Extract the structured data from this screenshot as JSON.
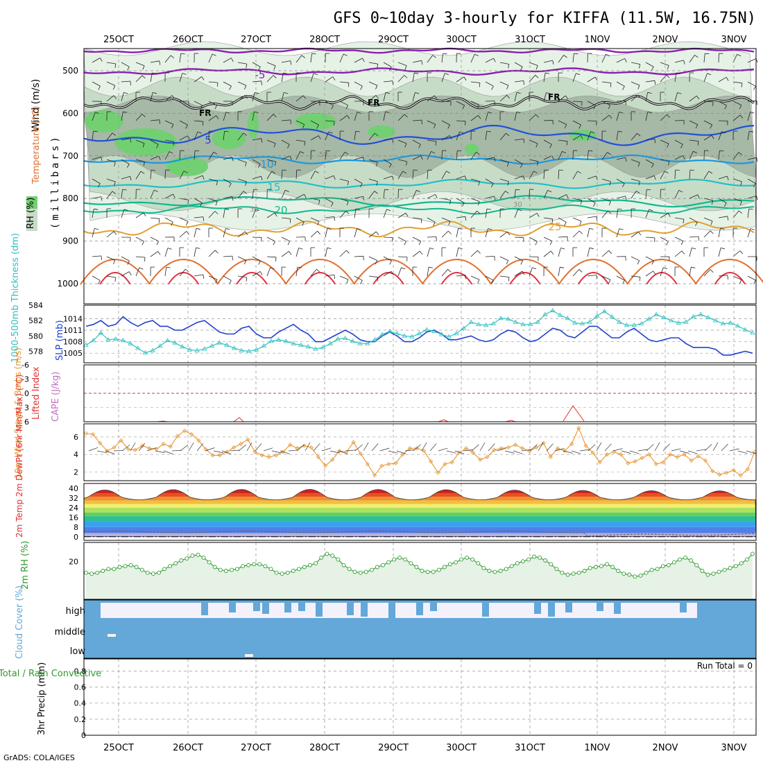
{
  "title": "GFS 0~10day 3-hourly for KIFFA (11.5W, 16.75N)",
  "footer": "GrADS: COLA/IGES",
  "dates": [
    "25OCT",
    "26OCT",
    "27OCT",
    "28OCT",
    "29OCT",
    "30OCT",
    "31OCT",
    "1NOV",
    "2NOV",
    "3NOV"
  ],
  "colors": {
    "rh_light": "#e6f2e6",
    "rh_mid": "#c7dcc7",
    "rh_dark": "#a6b8a6",
    "rh_green": "#72d072",
    "slp": "#1f3fcf",
    "thickness": "#30c0c0",
    "wind_speed": "#e89530",
    "rh2m": "#2f9a2f",
    "cloud": "#63a8d8",
    "cloud_bg": "#f5f1fa",
    "cape": "#c070c0",
    "lifted": "#e03030",
    "fr_line": "#000000",
    "iso_minus5": "#8a1fb0",
    "iso_5": "#2050d8",
    "iso_10": "#1898e0",
    "iso_15": "#20c0c8",
    "iso_20": "#10b890",
    "iso_25": "#e0a030",
    "iso_30": "#e07030",
    "iso_35": "#e03040"
  },
  "panels": {
    "upper": {
      "ylabel_wind": "Wind (m/s)",
      "ylabel_temp": "Temperature (°C)",
      "ylabel_rh": "RH (%)",
      "ylabel_units": "(millibars)",
      "pressure_ticks": [
        "500",
        "600",
        "700",
        "800",
        "900",
        "1000"
      ],
      "isotherm_labels": [
        "-5",
        "5",
        "10",
        "15",
        "20",
        "25"
      ],
      "fr_label": "FR",
      "rh_contour_labels": [
        "30",
        "50"
      ]
    },
    "slp": {
      "ylabel_left": "1000-500mb Thickness (dm)",
      "ylabel_right": "SLP (mb)",
      "thickness_ticks": [
        "584",
        "582",
        "580",
        "578"
      ],
      "slp_ticks": [
        "1014",
        "1011",
        "1008",
        "1005"
      ]
    },
    "li": {
      "ylabel_left": "Lifted Index",
      "ylabel_right": "CAPE (J/kg)",
      "ticks": [
        "-6",
        "-3",
        "0",
        "3",
        "6"
      ]
    },
    "wind10": {
      "ylabel": "10m Wind Speed & Barbs (m/s)",
      "ticks": [
        "6",
        "4",
        "2"
      ]
    },
    "temp2m": {
      "ylabel": "2m Temp 2m DewPt (6hr Min/Max) (°C)",
      "ticks": [
        "40",
        "32",
        "24",
        "16",
        "8",
        "0"
      ]
    },
    "rh2m": {
      "ylabel": "2m RH (%)",
      "ticks": [
        "20"
      ]
    },
    "cloud": {
      "ylabel": "Cloud Cover (%)",
      "levels": [
        "high",
        "middle",
        "low"
      ]
    },
    "precip": {
      "ylabel": "3hr Precip (mm)",
      "legend": "Total / Rain Convective",
      "run_total": "Run Total = 0",
      "ticks": [
        "0.8",
        "0.6",
        "0.4",
        "0.2",
        "0"
      ]
    }
  },
  "chart_data": [
    {
      "type": "line",
      "title": "SLP (mb) and 1000-500mb Thickness (dm)",
      "series": [
        {
          "name": "SLP (mb)",
          "values": [
            1012,
            1012.5,
            1013.5,
            1012,
            1012.5,
            1014.5,
            1013,
            1012,
            1013,
            1013.5,
            1012,
            1012,
            1011,
            1011,
            1012,
            1013,
            1013.5,
            1012,
            1010.5,
            1010,
            1010,
            1011.5,
            1012,
            1010,
            1009,
            1009,
            1010.5,
            1011.5,
            1012.5,
            1011,
            1010,
            1008,
            1008,
            1009,
            1010,
            1011,
            1010,
            1008.5,
            1008,
            1008,
            1009.5,
            1010.5,
            1009.5,
            1008,
            1008,
            1009,
            1010.5,
            1011,
            1010,
            1008.5,
            1008.5,
            1009,
            1009.5,
            1008.5,
            1008,
            1008.5,
            1010,
            1011,
            1010.5,
            1009,
            1008,
            1008.5,
            1010,
            1011.5,
            1011,
            1009.5,
            1009,
            1010.5,
            1012,
            1012,
            1010.5,
            1009,
            1009,
            1010.5,
            1011.5,
            1010,
            1008.5,
            1008,
            1008.5,
            1009,
            1009,
            1007.5,
            1006.5,
            1006.5,
            1006.5,
            1006,
            1004.5,
            1004.5,
            1005,
            1005.5,
            1005
          ]
        },
        {
          "name": "1000-500mb Thickness (dm)",
          "values": [
            578.8,
            579.4,
            580.4,
            579.5,
            579.6,
            579.4,
            579.0,
            578.4,
            577.8,
            578.1,
            578.7,
            579.4,
            579.1,
            578.6,
            578.2,
            578.1,
            578.3,
            578.7,
            579.1,
            578.8,
            578.4,
            578.1,
            578.0,
            578.2,
            578.7,
            579.3,
            579.5,
            579.3,
            579.0,
            578.8,
            578.6,
            578.3,
            578.5,
            579.0,
            579.6,
            579.7,
            579.3,
            579.0,
            579.0,
            579.5,
            580.2,
            580.6,
            580.3,
            580.0,
            579.9,
            580.3,
            580.8,
            580.6,
            580.2,
            579.9,
            580.3,
            581.0,
            581.8,
            581.5,
            581.4,
            581.6,
            582.3,
            582.2,
            581.8,
            581.5,
            581.5,
            581.8,
            582.8,
            583.3,
            582.7,
            582.3,
            581.7,
            581.6,
            581.8,
            582.6,
            583.2,
            582.5,
            581.8,
            581.4,
            581.4,
            581.6,
            582.2,
            582.8,
            582.4,
            582.0,
            581.7,
            581.8,
            582.5,
            582.8,
            582.4,
            582.0,
            581.6,
            581.7,
            581.3,
            580.8,
            580.4
          ]
        }
      ],
      "ylim": [
        576.5,
        584
      ]
    },
    {
      "type": "line",
      "title": "10m Wind Speed (m/s)",
      "series": [
        {
          "name": "10m Wind Speed",
          "values": [
            6.4,
            6.3,
            5.3,
            4.4,
            4.8,
            5.6,
            4.6,
            4.5,
            5.0,
            4.7,
            4.6,
            5.2,
            4.9,
            6.1,
            6.7,
            6.3,
            5.6,
            4.6,
            3.9,
            3.9,
            4.3,
            4.8,
            5.2,
            5.7,
            4.3,
            3.9,
            3.7,
            3.9,
            4.3,
            5.1,
            4.7,
            5.0,
            4.8,
            3.7,
            2.7,
            3.4,
            4.4,
            4.3,
            5.4,
            4.1,
            2.9,
            1.6,
            2.7,
            2.9,
            3.0,
            4.0,
            4.7,
            4.7,
            4.4,
            3.2,
            1.9,
            2.9,
            3.1,
            4.2,
            4.7,
            4.2,
            3.4,
            3.7,
            4.5,
            4.7,
            4.8,
            5.1,
            4.7,
            4.4,
            4.8,
            5.3,
            3.7,
            4.7,
            4.4,
            5.2,
            7.0,
            5.0,
            4.2,
            3.1,
            4.0,
            4.3,
            4.0,
            3.0,
            3.2,
            3.6,
            4.0,
            2.9,
            3.1,
            4.0,
            3.7,
            4.0,
            3.3,
            3.8,
            3.3,
            2.1,
            1.7,
            1.9,
            2.2,
            1.6,
            2.3,
            4.3
          ]
        }
      ],
      "ylim": [
        1,
        7.5
      ]
    },
    {
      "type": "line",
      "title": "2m RH (%)",
      "series": [
        {
          "name": "2m RH",
          "values": [
            14,
            13.5,
            14,
            15,
            16,
            16,
            17,
            17.5,
            18,
            17,
            15.5,
            14,
            13.5,
            14,
            16,
            17.5,
            19,
            20.5,
            21.5,
            23,
            23.5,
            22,
            19.5,
            17,
            15.5,
            15,
            15.5,
            16,
            17.5,
            18,
            18.5,
            18.5,
            17.5,
            16,
            14,
            13.5,
            14,
            15,
            16,
            17,
            18,
            19,
            22,
            24,
            23,
            21,
            18,
            16,
            14.5,
            14,
            14.5,
            15.5,
            17,
            18,
            19.5,
            21,
            22,
            21,
            19,
            17,
            15,
            14.5,
            14.5,
            15.5,
            17,
            18.5,
            19.5,
            21,
            22,
            21,
            19,
            16.5,
            15,
            14.5,
            15,
            16,
            17.5,
            19,
            20,
            21,
            22.5,
            22,
            20.5,
            18.5,
            16,
            14,
            13,
            13.5,
            14,
            15,
            16.5,
            17,
            17.5,
            18.5,
            17,
            15,
            13.5,
            13,
            12,
            12.5,
            14,
            15.5,
            16,
            17.5,
            18,
            19.5,
            21,
            22,
            20.5,
            18,
            15,
            13,
            13.5,
            14.5,
            15.5,
            16.5,
            17.5,
            19,
            21,
            24
          ]
        }
      ],
      "ylim": [
        0,
        30
      ]
    },
    {
      "type": "bar",
      "title": "3hr Precip (mm)",
      "series": [
        {
          "name": "3hr Precip",
          "values": [
            0
          ]
        }
      ],
      "ylim": [
        0,
        1
      ]
    }
  ]
}
